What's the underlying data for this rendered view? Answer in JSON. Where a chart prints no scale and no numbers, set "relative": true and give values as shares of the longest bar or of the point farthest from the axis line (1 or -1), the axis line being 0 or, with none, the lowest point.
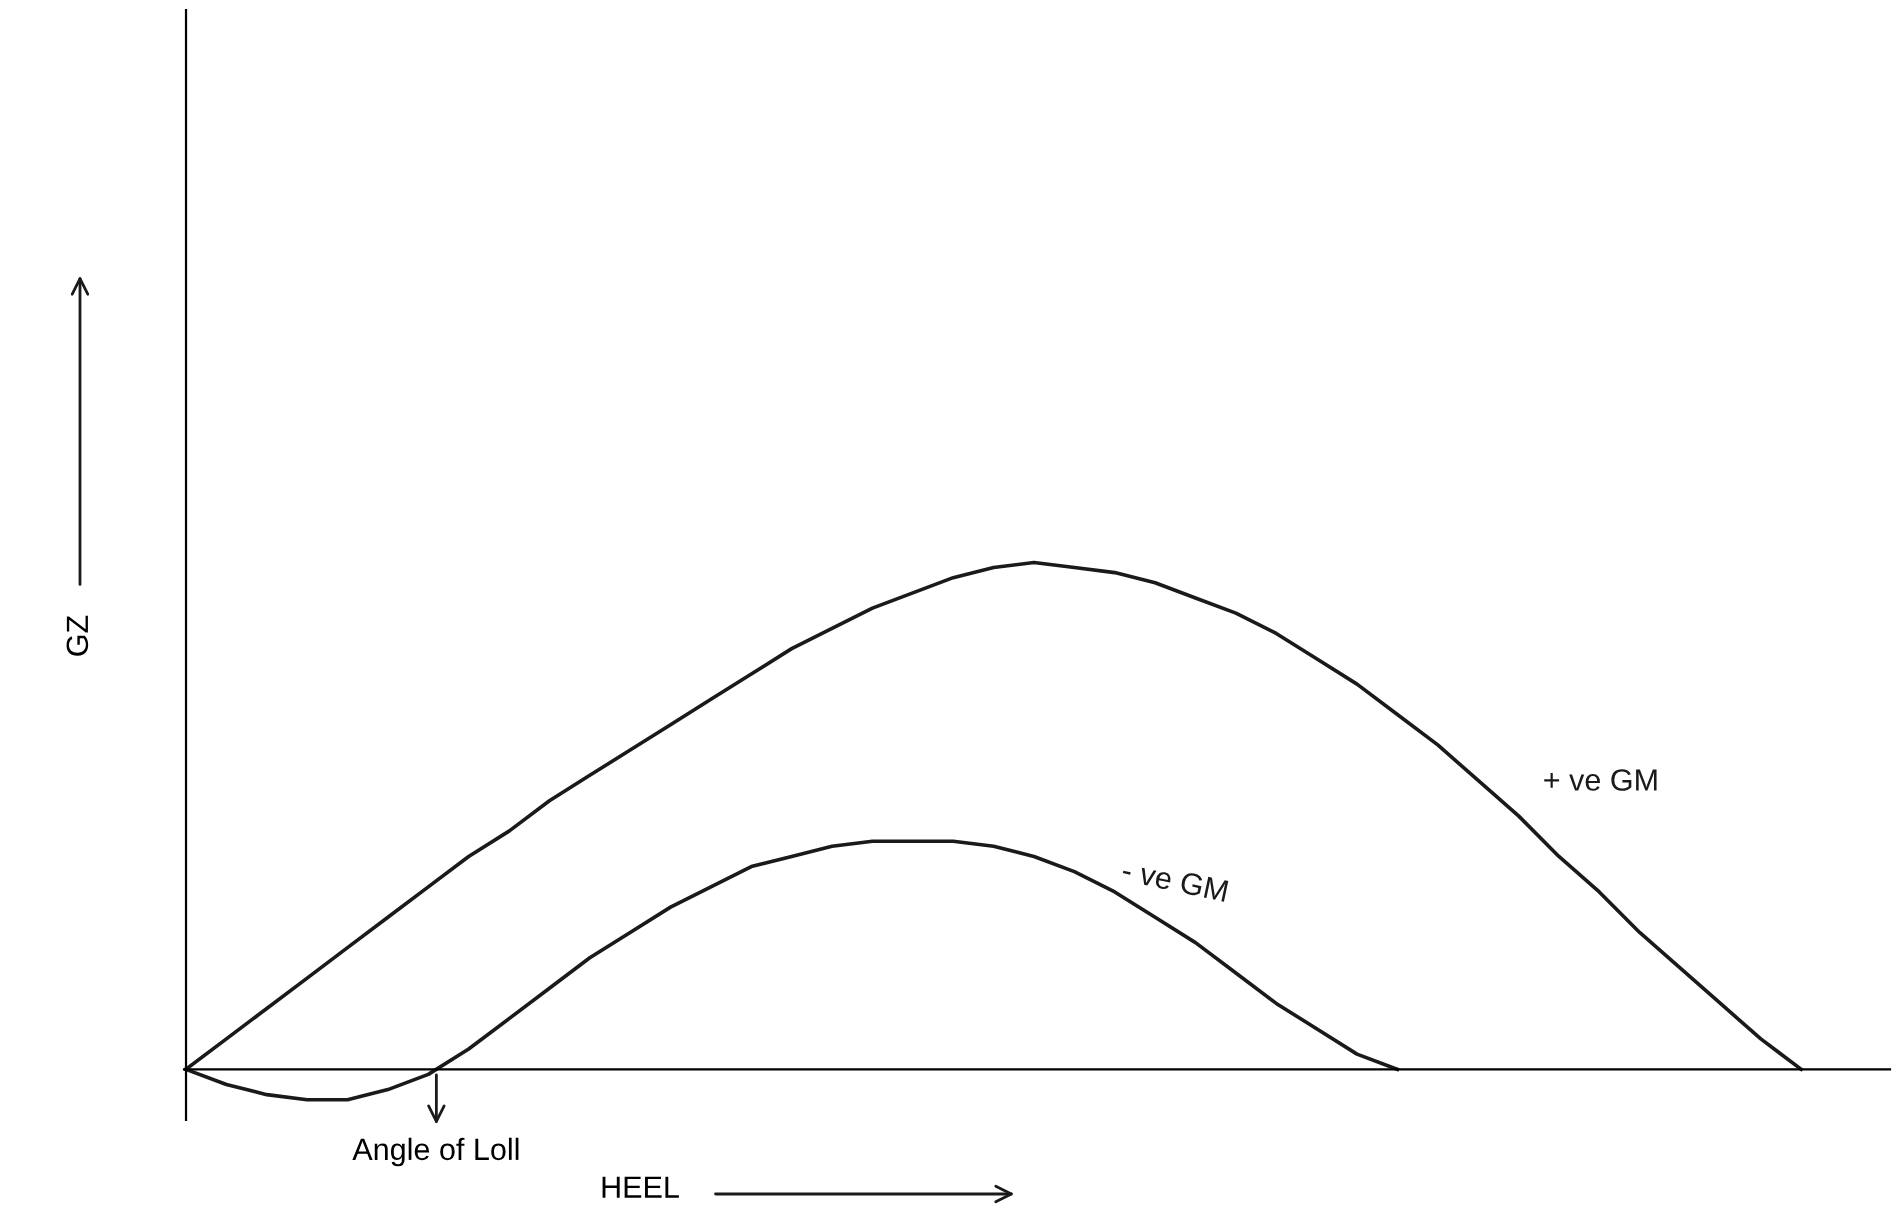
{
  "chart_data": {
    "type": "line",
    "relative": true,
    "xlabel": "HEEL",
    "ylabel": "GZ",
    "annotations": [
      "Angle of Loll"
    ],
    "marker": "none",
    "line_style": "solid",
    "grid": false,
    "legend": false,
    "categories": [
      null,
      null,
      null,
      null,
      null,
      null,
      null,
      null,
      null,
      null,
      null,
      null,
      null,
      null,
      null,
      null,
      null,
      null,
      null,
      null,
      null,
      null,
      null,
      null,
      null,
      null,
      null,
      null,
      null,
      null,
      null,
      null,
      null,
      null,
      null,
      null,
      null,
      null,
      null,
      null,
      null,
      null,
      null
    ],
    "series": [
      {
        "name": "+ ve GM",
        "color": "#1a1a1a",
        "values": [
          0,
          0.06,
          0.12,
          0.18,
          0.24,
          0.3,
          0.36,
          0.42,
          0.47,
          0.53,
          0.58,
          0.63,
          0.68,
          0.73,
          0.78,
          0.83,
          0.87,
          0.91,
          0.94,
          0.97,
          0.99,
          1.0,
          0.99,
          0.98,
          0.96,
          0.93,
          0.9,
          0.86,
          0.81,
          0.76,
          0.7,
          0.64,
          0.57,
          0.5,
          0.42,
          0.35,
          0.27,
          0.2,
          0.13,
          0.06,
          0,
          null,
          null
        ]
      },
      {
        "name": "- ve GM",
        "color": "#1a1a1a",
        "values": [
          0,
          -0.03,
          -0.05,
          -0.06,
          -0.06,
          -0.04,
          -0.01,
          0.04,
          0.1,
          0.16,
          0.22,
          0.27,
          0.32,
          0.36,
          0.4,
          0.42,
          0.44,
          0.45,
          0.45,
          0.45,
          0.44,
          0.42,
          0.39,
          0.35,
          0.3,
          0.25,
          0.19,
          0.13,
          0.08,
          0.03,
          0,
          null,
          null,
          null,
          null,
          null,
          null,
          null,
          null,
          null,
          null,
          null,
          null
        ]
      }
    ]
  }
}
